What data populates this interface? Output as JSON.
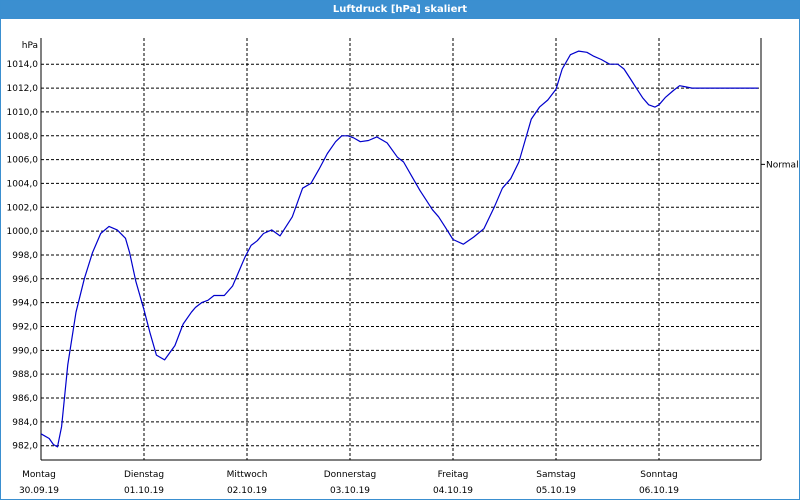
{
  "window": {
    "title": "Luftdruck [hPa] skaliert"
  },
  "chart_data": {
    "type": "line",
    "title": "Luftdruck [hPa] skaliert",
    "ylabel": "hPa",
    "ylim": [
      980.8,
      1016.2
    ],
    "yticks": [
      982,
      984,
      986,
      988,
      990,
      992,
      994,
      996,
      998,
      1000,
      1002,
      1004,
      1006,
      1008,
      1010,
      1012,
      1014
    ],
    "ytick_labels": [
      "982,0",
      "984,0",
      "986,0",
      "988,0",
      "990,0",
      "992,0",
      "994,0",
      "996,0",
      "998,0",
      "1000,0",
      "1002,0",
      "1004,0",
      "1006,0",
      "1008,0",
      "1010,0",
      "1012,0",
      "1014,0"
    ],
    "xlim": [
      0,
      7
    ],
    "x_unit": "days since Montag 30.09.19 00:00",
    "day_labels": [
      {
        "weekday": "Montag",
        "date": "30.09.19"
      },
      {
        "weekday": "Dienstag",
        "date": "01.10.19"
      },
      {
        "weekday": "Mittwoch",
        "date": "02.10.19"
      },
      {
        "weekday": "Donnerstag",
        "date": "03.10.19"
      },
      {
        "weekday": "Freitag",
        "date": "04.10.19"
      },
      {
        "weekday": "Samstag",
        "date": "05.10.19"
      },
      {
        "weekday": "Sonntag",
        "date": "06.10.19"
      }
    ],
    "reference_line": {
      "label": "Normal",
      "value": 1005.6
    },
    "grid": true,
    "line_color": "#0000cc",
    "series": [
      {
        "x": [
          0.0,
          0.08,
          0.12,
          0.16,
          0.2,
          0.26,
          0.34,
          0.42,
          0.5,
          0.58,
          0.66,
          0.74,
          0.82,
          0.86,
          0.92,
          1.0,
          1.06,
          1.12,
          1.2,
          1.3,
          1.38,
          1.46,
          1.5,
          1.56,
          1.62,
          1.68,
          1.78,
          1.86,
          1.94,
          1.98,
          2.04,
          2.1,
          2.16,
          2.24,
          2.32,
          2.44,
          2.54,
          2.62,
          2.7,
          2.78,
          2.86,
          2.92,
          2.98,
          3.04,
          3.1,
          3.18,
          3.26,
          3.36,
          3.46,
          3.52,
          3.6,
          3.68,
          3.74,
          3.8,
          3.86,
          3.92,
          4.0,
          4.1,
          4.2,
          4.3,
          4.4,
          4.48,
          4.56,
          4.64,
          4.7,
          4.76,
          4.84,
          4.92,
          5.0,
          5.06,
          5.14,
          5.22,
          5.3,
          5.36,
          5.44,
          5.52,
          5.6,
          5.66,
          5.72,
          5.78,
          5.84,
          5.9,
          5.96,
          6.0,
          6.06,
          6.14,
          6.2,
          6.26,
          6.32,
          6.4,
          6.48,
          6.56,
          6.62,
          6.68,
          6.74,
          6.8,
          6.86,
          6.92,
          6.96
        ],
        "y": [
          983.0,
          982.6,
          982.1,
          981.9,
          983.6,
          988.8,
          993.2,
          996.0,
          998.2,
          999.8,
          1000.4,
          1000.1,
          999.4,
          998.2,
          995.8,
          993.4,
          991.4,
          989.6,
          989.2,
          990.4,
          992.2,
          993.2,
          993.6,
          994.0,
          994.2,
          994.6,
          994.6,
          995.4,
          997.0,
          997.8,
          998.8,
          999.2,
          999.8,
          1000.1,
          999.6,
          1001.2,
          1003.6,
          1004.0,
          1005.2,
          1006.5,
          1007.5,
          1008.0,
          1008.0,
          1007.8,
          1007.5,
          1007.6,
          1007.9,
          1007.4,
          1006.2,
          1005.8,
          1004.6,
          1003.4,
          1002.6,
          1001.8,
          1001.2,
          1000.4,
          999.3,
          998.9,
          999.5,
          1000.2,
          1002.0,
          1003.6,
          1004.4,
          1005.8,
          1007.6,
          1009.4,
          1010.4,
          1011.0,
          1011.9,
          1013.6,
          1014.8,
          1015.1,
          1015.0,
          1014.7,
          1014.4,
          1014.0,
          1014.0,
          1013.6,
          1012.8,
          1012.0,
          1011.2,
          1010.6,
          1010.4,
          1010.6,
          1011.2,
          1011.8,
          1012.2,
          1012.1,
          1012.0,
          1012.0,
          1012.0,
          1012.0,
          1012.0,
          1012.0,
          1012.0,
          1012.0,
          1012.0,
          1012.0,
          1012.0
        ]
      }
    ]
  }
}
